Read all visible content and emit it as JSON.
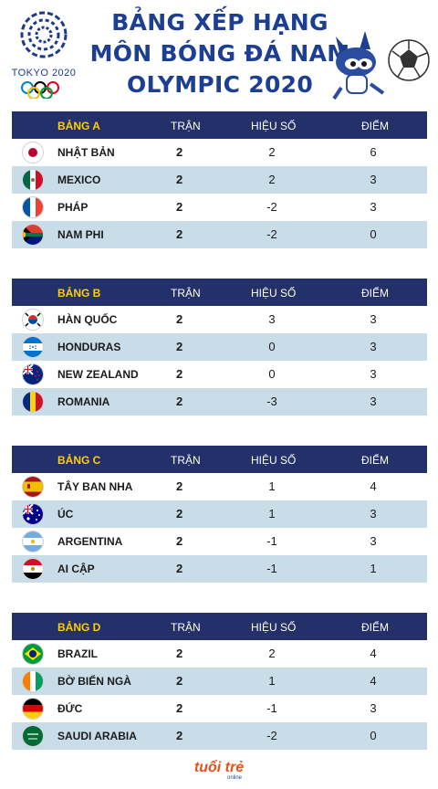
{
  "header": {
    "logo_text": "TOKYO 2020",
    "title_lines": [
      "BẢNG XẾP HẠNG",
      "MÔN BÓNG ĐÁ NAM",
      "OLYMPIC 2020"
    ]
  },
  "columns": {
    "played": "TRẬN",
    "diff": "HIỆU SỐ",
    "points": "ĐIỂM"
  },
  "groups": [
    {
      "name": "BẢNG A",
      "rows": [
        {
          "team": "NHẬT BẢN",
          "flag": "japan-flag-icon",
          "played": "2",
          "diff": "2",
          "points": "6"
        },
        {
          "team": "MEXICO",
          "flag": "mexico-flag-icon",
          "played": "2",
          "diff": "2",
          "points": "3"
        },
        {
          "team": "PHÁP",
          "flag": "france-flag-icon",
          "played": "2",
          "diff": "-2",
          "points": "3"
        },
        {
          "team": "NAM PHI",
          "flag": "south-africa-flag-icon",
          "played": "2",
          "diff": "-2",
          "points": "0"
        }
      ]
    },
    {
      "name": "BẢNG B",
      "rows": [
        {
          "team": "HÀN QUỐC",
          "flag": "south-korea-flag-icon",
          "played": "2",
          "diff": "3",
          "points": "3"
        },
        {
          "team": "HONDURAS",
          "flag": "honduras-flag-icon",
          "played": "2",
          "diff": "0",
          "points": "3"
        },
        {
          "team": "NEW ZEALAND",
          "flag": "new-zealand-flag-icon",
          "played": "2",
          "diff": "0",
          "points": "3"
        },
        {
          "team": "ROMANIA",
          "flag": "romania-flag-icon",
          "played": "2",
          "diff": "-3",
          "points": "3"
        }
      ]
    },
    {
      "name": "BẢNG C",
      "rows": [
        {
          "team": "TÂY BAN NHA",
          "flag": "spain-flag-icon",
          "played": "2",
          "diff": "1",
          "points": "4"
        },
        {
          "team": "ÚC",
          "flag": "australia-flag-icon",
          "played": "2",
          "diff": "1",
          "points": "3"
        },
        {
          "team": "ARGENTINA",
          "flag": "argentina-flag-icon",
          "played": "2",
          "diff": "-1",
          "points": "3"
        },
        {
          "team": "AI CẬP",
          "flag": "egypt-flag-icon",
          "played": "2",
          "diff": "-1",
          "points": "1"
        }
      ]
    },
    {
      "name": "BẢNG D",
      "rows": [
        {
          "team": "BRAZIL",
          "flag": "brazil-flag-icon",
          "played": "2",
          "diff": "2",
          "points": "4"
        },
        {
          "team": "BỜ BIỂN NGÀ",
          "flag": "ivory-coast-flag-icon",
          "played": "2",
          "diff": "1",
          "points": "4"
        },
        {
          "team": "ĐỨC",
          "flag": "germany-flag-icon",
          "played": "2",
          "diff": "-1",
          "points": "3"
        },
        {
          "team": "SAUDI ARABIA",
          "flag": "saudi-arabia-flag-icon",
          "played": "2",
          "diff": "-2",
          "points": "0"
        }
      ]
    }
  ],
  "footer": {
    "logo_text": "tuổi trẻ",
    "logo_subtext": "online"
  },
  "colors": {
    "header_bar": "#24306a",
    "group_label": "#ffcf00",
    "alt_row": "#c9dde8",
    "title": "#1d3f93",
    "footer_logo": "#e8501c"
  }
}
